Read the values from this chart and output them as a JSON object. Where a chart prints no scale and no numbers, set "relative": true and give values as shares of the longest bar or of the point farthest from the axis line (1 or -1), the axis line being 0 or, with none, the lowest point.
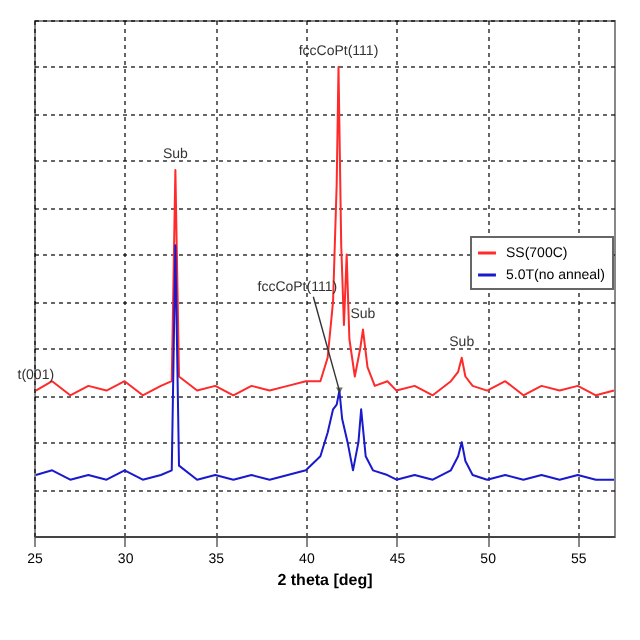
{
  "chart_data": {
    "type": "line",
    "relative": true,
    "xlabel": "2 theta [deg]",
    "xlim": [
      25,
      57
    ],
    "xticks": [
      25,
      30,
      35,
      40,
      45,
      50,
      55
    ],
    "grid": true,
    "legend": "right",
    "series": [
      {
        "name": "SS(700C)",
        "color": "#ff2a2a",
        "x": [
          25.1,
          26,
          27,
          28,
          29,
          30,
          31,
          32,
          32.6,
          32.8,
          33.0,
          34,
          35,
          36,
          37,
          38,
          39,
          40,
          40.8,
          41.2,
          41.5,
          41.7,
          41.8,
          41.95,
          42.1,
          42.25,
          42.4,
          42.7,
          43.0,
          43.15,
          43.4,
          43.8,
          44.5,
          45,
          46,
          47,
          48,
          48.4,
          48.6,
          48.8,
          49.2,
          50,
          51,
          52,
          53,
          54,
          55,
          56,
          57
        ],
        "values": [
          0.31,
          0.33,
          0.3,
          0.32,
          0.31,
          0.33,
          0.3,
          0.32,
          0.33,
          0.78,
          0.34,
          0.31,
          0.32,
          0.3,
          0.32,
          0.31,
          0.32,
          0.33,
          0.33,
          0.38,
          0.5,
          0.75,
          1.0,
          0.62,
          0.45,
          0.6,
          0.42,
          0.34,
          0.4,
          0.44,
          0.36,
          0.32,
          0.33,
          0.31,
          0.32,
          0.3,
          0.33,
          0.35,
          0.38,
          0.34,
          0.32,
          0.31,
          0.33,
          0.3,
          0.32,
          0.31,
          0.32,
          0.3,
          0.31
        ]
      },
      {
        "name": "5.0T(no anneal)",
        "color": "#1a1acc",
        "x": [
          25.1,
          26,
          27,
          28,
          29,
          30,
          31,
          32,
          32.6,
          32.8,
          33.0,
          34,
          35,
          36,
          37,
          38,
          39,
          40,
          40.8,
          41.2,
          41.5,
          41.7,
          41.85,
          42.0,
          42.3,
          42.6,
          42.9,
          43.05,
          43.3,
          43.7,
          44.5,
          45,
          46,
          47,
          48,
          48.4,
          48.6,
          48.8,
          49.2,
          50,
          51,
          52,
          53,
          54,
          55,
          56,
          57
        ],
        "values": [
          0.13,
          0.14,
          0.12,
          0.13,
          0.12,
          0.14,
          0.12,
          0.13,
          0.14,
          0.62,
          0.15,
          0.12,
          0.13,
          0.12,
          0.13,
          0.12,
          0.13,
          0.14,
          0.17,
          0.22,
          0.27,
          0.28,
          0.31,
          0.25,
          0.2,
          0.14,
          0.2,
          0.27,
          0.17,
          0.14,
          0.13,
          0.12,
          0.13,
          0.12,
          0.14,
          0.17,
          0.2,
          0.16,
          0.13,
          0.12,
          0.13,
          0.12,
          0.13,
          0.12,
          0.13,
          0.12,
          0.12
        ]
      }
    ],
    "annotations": [
      {
        "text": "fccCoPt(111)",
        "x": 41.8,
        "y": 1.0
      },
      {
        "text": "Sub",
        "x": 32.8,
        "y": 0.78
      },
      {
        "text": "t(001)",
        "x": 25.1,
        "y": 0.31
      },
      {
        "text": "fccCoPt(111)",
        "x": 41.85,
        "y": 0.31
      },
      {
        "text": "Sub",
        "x": 43.15,
        "y": 0.44
      },
      {
        "text": "Sub",
        "x": 48.6,
        "y": 0.38
      }
    ]
  }
}
